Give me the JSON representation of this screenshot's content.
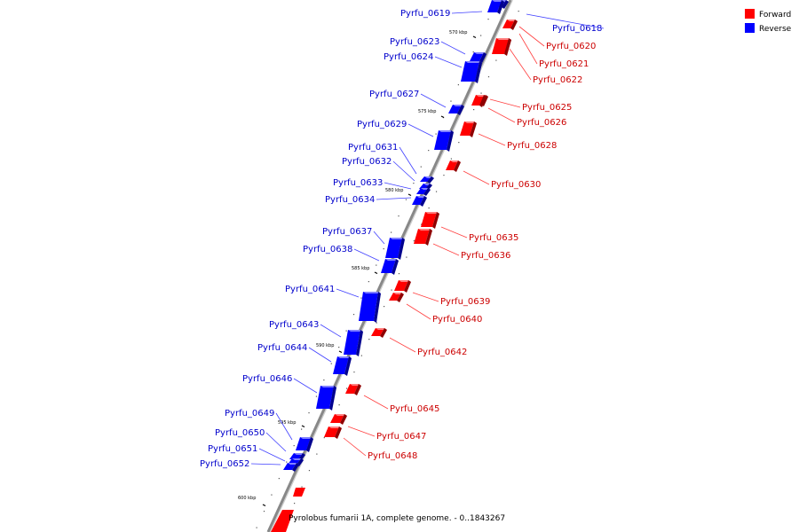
{
  "legend": {
    "forward": {
      "label": "Forward",
      "color": "#ff0000"
    },
    "reverse": {
      "label": "Reverse",
      "color": "#0000ff"
    }
  },
  "caption": "Pyrolobus fumarii 1A, complete genome. - 0..1843267",
  "colors": {
    "forward_text": "#cc0000",
    "reverse_text": "#0000cc",
    "backbone": "#888888"
  },
  "ticks": [
    "570 kbp",
    "575 kbp",
    "580 kbp",
    "585 kbp",
    "590 kbp",
    "595 kbp",
    "600 kbp"
  ],
  "genes": [
    {
      "name": "Pyrfu_0618",
      "strand": "reverse"
    },
    {
      "name": "Pyrfu_0619",
      "strand": "reverse"
    },
    {
      "name": "Pyrfu_0620",
      "strand": "forward"
    },
    {
      "name": "Pyrfu_0621",
      "strand": "forward"
    },
    {
      "name": "Pyrfu_0622",
      "strand": "forward"
    },
    {
      "name": "Pyrfu_0623",
      "strand": "reverse"
    },
    {
      "name": "Pyrfu_0624",
      "strand": "reverse"
    },
    {
      "name": "Pyrfu_0625",
      "strand": "forward"
    },
    {
      "name": "Pyrfu_0626",
      "strand": "forward"
    },
    {
      "name": "Pyrfu_0627",
      "strand": "reverse"
    },
    {
      "name": "Pyrfu_0628",
      "strand": "forward"
    },
    {
      "name": "Pyrfu_0629",
      "strand": "reverse"
    },
    {
      "name": "Pyrfu_0630",
      "strand": "forward"
    },
    {
      "name": "Pyrfu_0631",
      "strand": "reverse"
    },
    {
      "name": "Pyrfu_0632",
      "strand": "reverse"
    },
    {
      "name": "Pyrfu_0633",
      "strand": "reverse"
    },
    {
      "name": "Pyrfu_0634",
      "strand": "reverse"
    },
    {
      "name": "Pyrfu_0635",
      "strand": "forward"
    },
    {
      "name": "Pyrfu_0636",
      "strand": "forward"
    },
    {
      "name": "Pyrfu_0637",
      "strand": "reverse"
    },
    {
      "name": "Pyrfu_0638",
      "strand": "reverse"
    },
    {
      "name": "Pyrfu_0639",
      "strand": "forward"
    },
    {
      "name": "Pyrfu_0640",
      "strand": "forward"
    },
    {
      "name": "Pyrfu_0641",
      "strand": "reverse"
    },
    {
      "name": "Pyrfu_0642",
      "strand": "forward"
    },
    {
      "name": "Pyrfu_0643",
      "strand": "reverse"
    },
    {
      "name": "Pyrfu_0644",
      "strand": "reverse"
    },
    {
      "name": "Pyrfu_0645",
      "strand": "forward"
    },
    {
      "name": "Pyrfu_0646",
      "strand": "reverse"
    },
    {
      "name": "Pyrfu_0647",
      "strand": "forward"
    },
    {
      "name": "Pyrfu_0648",
      "strand": "forward"
    },
    {
      "name": "Pyrfu_0649",
      "strand": "reverse"
    },
    {
      "name": "Pyrfu_0650",
      "strand": "reverse"
    },
    {
      "name": "Pyrfu_0651",
      "strand": "reverse"
    },
    {
      "name": "Pyrfu_0652",
      "strand": "reverse"
    }
  ]
}
